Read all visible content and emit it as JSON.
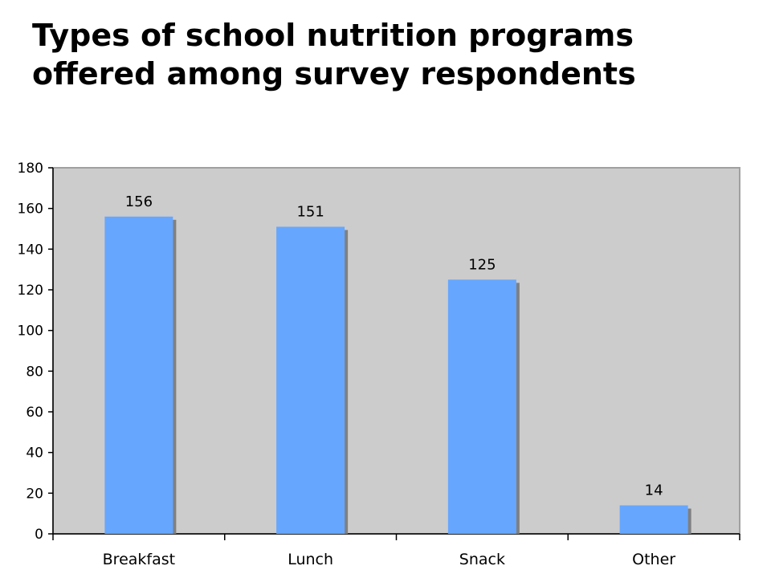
{
  "title": {
    "line1": "Types of school nutrition programs",
    "line2": "offered among survey respondents"
  },
  "colors": {
    "bar": "#66a6ff",
    "bar_shadow": "#808080",
    "plot_background": "#cccccc",
    "axis": "#000000",
    "plot_border": "#a0a0a0"
  },
  "chart_data": {
    "type": "bar",
    "categories": [
      "Breakfast",
      "Lunch",
      "Snack",
      "Other"
    ],
    "values": [
      156,
      151,
      125,
      14
    ],
    "data_labels": [
      "156",
      "151",
      "125",
      "14"
    ],
    "title": "",
    "xlabel": "",
    "ylabel": "",
    "ylim": [
      0,
      180
    ],
    "yticks": [
      0,
      20,
      40,
      60,
      80,
      100,
      120,
      140,
      160,
      180
    ],
    "grid": false,
    "legend": "none"
  }
}
